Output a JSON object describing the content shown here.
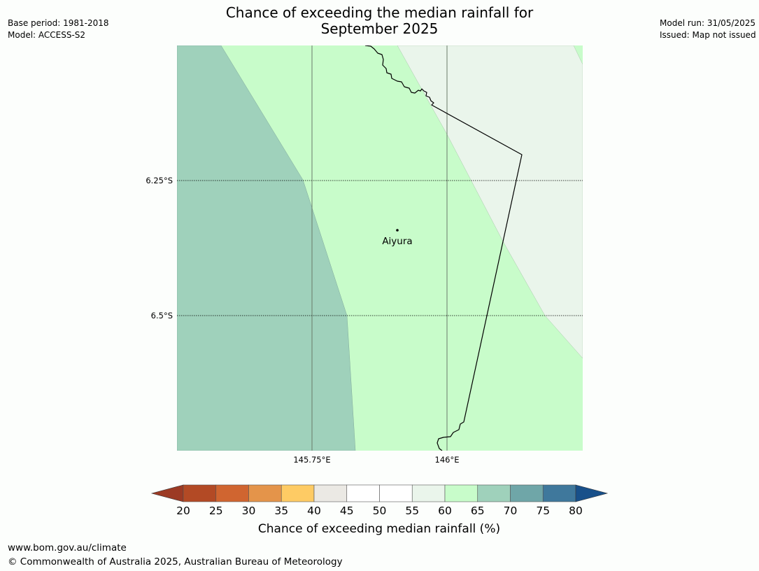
{
  "header": {
    "title_line1": "Chance of exceeding the median rainfall for",
    "title_line2": "September 2025",
    "base_period": "Base period: 1981-2018",
    "model": "Model: ACCESS-S2",
    "model_run": "Model run: 31/05/2025",
    "issued": "Issued: Map not issued"
  },
  "map": {
    "region_colors": {
      "band_65_70": "#9fd1bb",
      "band_60_65": "#c8fcca",
      "band_55_60": "#eaf5eb"
    },
    "latitude_labels": [
      "6.25°S",
      "6.5°S"
    ],
    "longitude_labels": [
      "145.75°E",
      "146°E"
    ],
    "place": {
      "name": "Aiyura"
    }
  },
  "colorbar": {
    "label": "Chance of exceeding median rainfall (%)",
    "ticks": [
      "20",
      "25",
      "30",
      "35",
      "40",
      "45",
      "50",
      "55",
      "60",
      "65",
      "70",
      "75",
      "80"
    ],
    "under_color": "#9c3a24",
    "over_color": "#18508a",
    "colors": [
      "#b34a25",
      "#d06530",
      "#e4944a",
      "#fecb64",
      "#ebe9e4",
      "#ffffff",
      "#ffffff",
      "#eaf5eb",
      "#c8fcca",
      "#9fd1bb",
      "#6fa6a8",
      "#3f789c"
    ]
  },
  "footer": {
    "url": "www.bom.gov.au/climate",
    "copyright": "© Commonwealth of Australia 2025, Australian Bureau of Meteorology"
  }
}
